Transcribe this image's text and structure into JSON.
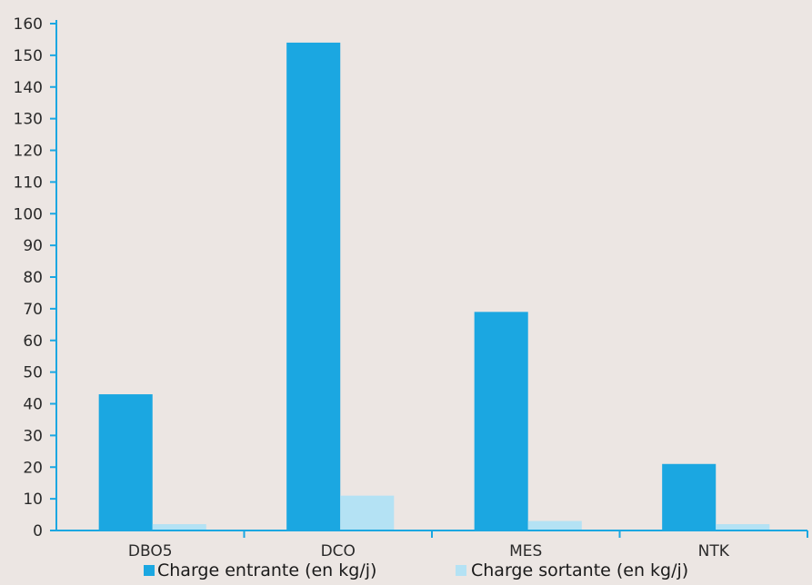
{
  "chart_data": {
    "type": "bar",
    "categories": [
      "DBO5",
      "DCO",
      "MES",
      "NTK"
    ],
    "series": [
      {
        "name": "Charge entrante (en kg/j)",
        "values": [
          43,
          154,
          69,
          21
        ],
        "color": "#1ba7e1"
      },
      {
        "name": "Charge sortante (en kg/j)",
        "values": [
          2,
          11,
          3,
          2
        ],
        "color": "#b4e2f4"
      }
    ],
    "ylim": [
      0,
      160
    ],
    "yticks": [
      0,
      10,
      20,
      30,
      40,
      50,
      60,
      70,
      80,
      90,
      100,
      110,
      120,
      130,
      140,
      150,
      160
    ],
    "title": "",
    "xlabel": "",
    "ylabel": "",
    "grid": false,
    "legend_position": "bottom",
    "axis_color": "#1ba7e1",
    "background": "#ece6e3"
  }
}
